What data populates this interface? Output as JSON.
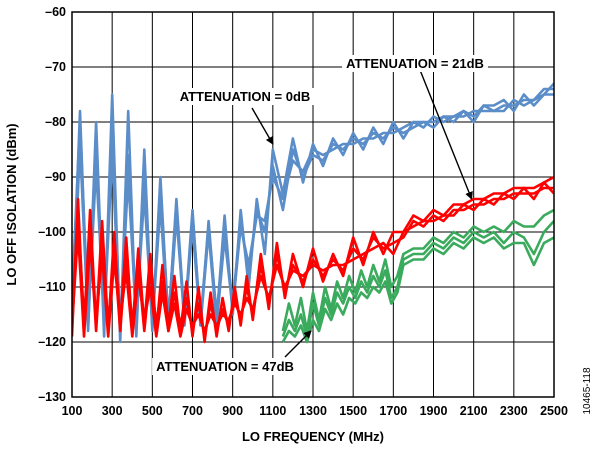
{
  "chart_data": {
    "type": "line",
    "xlabel": "LO FREQUENCY (MHz)",
    "ylabel": "LO OFF ISOLATION (dBm)",
    "xlim": [
      100,
      2500
    ],
    "ylim": [
      -130,
      -60
    ],
    "x_ticks": [
      100,
      300,
      500,
      700,
      900,
      1100,
      1300,
      1500,
      1700,
      1900,
      2100,
      2300,
      2500
    ],
    "x_tick_labels": [
      "100",
      "300",
      "500",
      "700",
      "900",
      "1100",
      "1300",
      "1500",
      "1700",
      "1900",
      "2100",
      "2300",
      "2500"
    ],
    "y_ticks": [
      -60,
      -70,
      -80,
      -90,
      -100,
      -110,
      -120,
      -130
    ],
    "y_tick_labels": [
      "–60",
      "–70",
      "–80",
      "–90",
      "–100",
      "–110",
      "–120",
      "–130"
    ],
    "grid": true,
    "colors": {
      "att_0db": "#5B8DC8",
      "att_21db": "#FF0000",
      "att_47db": "#3AAA5C"
    },
    "annotations": [
      {
        "text": "ATTENUATION = 0dB",
        "target_x": 1100,
        "target_y": -84
      },
      {
        "text": "ATTENUATION = 21dB",
        "target_x": 2090,
        "target_y": -94
      },
      {
        "text": "ATTENUATION = 47dB",
        "target_x": 1290,
        "target_y": -118
      }
    ],
    "series": [
      {
        "color": "#5B8DC8",
        "x": [
          100,
          140,
          180,
          220,
          260,
          300,
          340,
          380,
          420,
          460,
          500,
          540,
          580,
          620,
          660,
          700,
          740,
          780,
          820,
          860,
          900,
          940,
          980,
          1020,
          1060,
          1100,
          1150,
          1200,
          1250,
          1300,
          1350,
          1400,
          1450,
          1500,
          1550,
          1600,
          1650,
          1700,
          1750,
          1800,
          1850,
          1900,
          1950,
          2000,
          2050,
          2100,
          2150,
          2200,
          2250,
          2300,
          2350,
          2400,
          2450,
          2500
        ],
        "y": [
          -116,
          -78,
          -118,
          -80,
          -119,
          -75,
          -120,
          -78,
          -119,
          -85,
          -118,
          -90,
          -117,
          -94,
          -116,
          -96,
          -117,
          -98,
          -116,
          -97,
          -115,
          -96,
          -110,
          -94,
          -104,
          -85,
          -93,
          -83,
          -91,
          -84,
          -88,
          -83,
          -86,
          -82,
          -85,
          -81,
          -84,
          -80,
          -83,
          -80,
          -81,
          -79,
          -80,
          -79,
          -79,
          -78,
          -78,
          -78,
          -78,
          -76,
          -77,
          -76,
          -75,
          -73
        ]
      },
      {
        "color": "#5B8DC8",
        "x": [
          100,
          140,
          180,
          220,
          260,
          300,
          340,
          380,
          420,
          460,
          500,
          540,
          580,
          620,
          660,
          700,
          740,
          780,
          820,
          860,
          900,
          940,
          980,
          1020,
          1060,
          1100,
          1150,
          1200,
          1250,
          1300,
          1350,
          1400,
          1450,
          1500,
          1550,
          1600,
          1650,
          1700,
          1750,
          1800,
          1850,
          1900,
          1950,
          2000,
          2050,
          2100,
          2150,
          2200,
          2250,
          2300,
          2350,
          2400,
          2450,
          2500
        ],
        "y": [
          -112,
          -80,
          -115,
          -84,
          -117,
          -80,
          -118,
          -86,
          -118,
          -88,
          -117,
          -92,
          -116,
          -95,
          -117,
          -97,
          -116,
          -99,
          -115,
          -100,
          -113,
          -98,
          -108,
          -96,
          -100,
          -88,
          -96,
          -85,
          -90,
          -86,
          -87,
          -84,
          -85,
          -83,
          -84,
          -82,
          -83,
          -81,
          -82,
          -81,
          -80,
          -80,
          -79,
          -79,
          -78,
          -79,
          -77,
          -78,
          -77,
          -77,
          -76,
          -76,
          -74,
          -74
        ]
      },
      {
        "color": "#5B8DC8",
        "x": [
          100,
          140,
          180,
          220,
          260,
          300,
          340,
          380,
          420,
          460,
          500,
          540,
          580,
          620,
          660,
          700,
          740,
          780,
          820,
          860,
          900,
          940,
          980,
          1020,
          1060,
          1100,
          1150,
          1200,
          1250,
          1300,
          1350,
          1400,
          1450,
          1500,
          1550,
          1600,
          1650,
          1700,
          1750,
          1800,
          1850,
          1900,
          1950,
          2000,
          2050,
          2100,
          2150,
          2200,
          2250,
          2300,
          2350,
          2400,
          2450,
          2500
        ],
        "y": [
          -118,
          -84,
          -117,
          -88,
          -116,
          -86,
          -117,
          -90,
          -116,
          -93,
          -117,
          -95,
          -118,
          -97,
          -116,
          -99,
          -117,
          -100,
          -117,
          -101,
          -114,
          -99,
          -106,
          -97,
          -98,
          -90,
          -94,
          -87,
          -89,
          -85,
          -86,
          -85,
          -84,
          -84,
          -83,
          -83,
          -82,
          -82,
          -81,
          -80,
          -80,
          -81,
          -79,
          -80,
          -78,
          -80,
          -77,
          -77,
          -76,
          -78,
          -75,
          -77,
          -75,
          -75
        ]
      },
      {
        "color": "#FF0000",
        "x": [
          100,
          130,
          160,
          190,
          220,
          250,
          280,
          310,
          340,
          370,
          400,
          430,
          460,
          490,
          520,
          550,
          580,
          610,
          640,
          670,
          700,
          730,
          760,
          790,
          820,
          850,
          880,
          910,
          940,
          970,
          1000,
          1040,
          1080,
          1120,
          1160,
          1200,
          1250,
          1300,
          1350,
          1400,
          1450,
          1500,
          1550,
          1600,
          1650,
          1700,
          1750,
          1800,
          1850,
          1900,
          1950,
          2000,
          2050,
          2100,
          2150,
          2200,
          2250,
          2300,
          2350,
          2400,
          2450,
          2500
        ],
        "y": [
          -119,
          -94,
          -118,
          -96,
          -117,
          -98,
          -118,
          -100,
          -117,
          -101,
          -118,
          -103,
          -117,
          -104,
          -118,
          -106,
          -117,
          -108,
          -118,
          -109,
          -119,
          -110,
          -120,
          -111,
          -119,
          -112,
          -118,
          -110,
          -117,
          -108,
          -116,
          -104,
          -114,
          -102,
          -112,
          -104,
          -110,
          -103,
          -109,
          -104,
          -108,
          -101,
          -106,
          -100,
          -104,
          -100,
          -100,
          -97,
          -98,
          -96,
          -97,
          -95,
          -95,
          -94,
          -94,
          -93,
          -93,
          -92,
          -92,
          -92,
          -91,
          -90
        ]
      },
      {
        "color": "#FF0000",
        "x": [
          100,
          130,
          160,
          190,
          220,
          250,
          280,
          310,
          340,
          370,
          400,
          430,
          460,
          490,
          520,
          550,
          580,
          610,
          640,
          670,
          700,
          730,
          760,
          790,
          820,
          850,
          880,
          910,
          940,
          970,
          1000,
          1040,
          1080,
          1120,
          1160,
          1200,
          1250,
          1300,
          1350,
          1400,
          1450,
          1500,
          1550,
          1600,
          1650,
          1700,
          1750,
          1800,
          1850,
          1900,
          1950,
          2000,
          2050,
          2100,
          2150,
          2200,
          2250,
          2300,
          2350,
          2400,
          2450,
          2500
        ],
        "y": [
          -115,
          -97,
          -116,
          -100,
          -118,
          -101,
          -117,
          -103,
          -118,
          -104,
          -117,
          -106,
          -118,
          -107,
          -117,
          -109,
          -118,
          -111,
          -117,
          -112,
          -118,
          -113,
          -119,
          -113,
          -118,
          -114,
          -117,
          -112,
          -116,
          -110,
          -115,
          -106,
          -113,
          -104,
          -111,
          -106,
          -109,
          -105,
          -108,
          -105,
          -107,
          -103,
          -105,
          -101,
          -103,
          -102,
          -101,
          -98,
          -99,
          -97,
          -98,
          -96,
          -96,
          -95,
          -95,
          -94,
          -94,
          -93,
          -93,
          -93,
          -92,
          -92
        ]
      },
      {
        "color": "#FF0000",
        "x": [
          100,
          130,
          160,
          190,
          220,
          250,
          280,
          310,
          340,
          370,
          400,
          430,
          460,
          490,
          520,
          550,
          580,
          610,
          640,
          670,
          700,
          730,
          760,
          790,
          820,
          850,
          880,
          910,
          940,
          970,
          1000,
          1040,
          1080,
          1120,
          1160,
          1200,
          1250,
          1300,
          1350,
          1400,
          1450,
          1500,
          1550,
          1600,
          1650,
          1700,
          1750,
          1800,
          1850,
          1900,
          1950,
          2000,
          2050,
          2100,
          2150,
          2200,
          2250,
          2300,
          2350,
          2400,
          2450,
          2500
        ],
        "y": [
          -117,
          -100,
          -119,
          -102,
          -116,
          -104,
          -119,
          -105,
          -116,
          -107,
          -119,
          -108,
          -116,
          -110,
          -119,
          -111,
          -118,
          -113,
          -119,
          -114,
          -117,
          -115,
          -118,
          -115,
          -117,
          -115,
          -116,
          -113,
          -115,
          -112,
          -114,
          -108,
          -112,
          -106,
          -110,
          -107,
          -108,
          -106,
          -107,
          -106,
          -106,
          -105,
          -104,
          -103,
          -102,
          -104,
          -100,
          -99,
          -98,
          -98,
          -97,
          -97,
          -95,
          -96,
          -94,
          -95,
          -93,
          -94,
          -92,
          -94,
          -91,
          -93
        ]
      },
      {
        "color": "#3AAA5C",
        "x": [
          1150,
          1180,
          1210,
          1240,
          1270,
          1300,
          1330,
          1360,
          1390,
          1420,
          1450,
          1480,
          1510,
          1540,
          1570,
          1600,
          1630,
          1660,
          1690,
          1720,
          1750,
          1800,
          1850,
          1900,
          1950,
          2000,
          2050,
          2100,
          2150,
          2200,
          2250,
          2300,
          2350,
          2400,
          2450,
          2500
        ],
        "y": [
          -118,
          -113,
          -117,
          -112,
          -118,
          -111,
          -116,
          -110,
          -114,
          -109,
          -112,
          -108,
          -111,
          -107,
          -110,
          -106,
          -109,
          -105,
          -110,
          -108,
          -104,
          -103,
          -103,
          -101,
          -102,
          -100,
          -101,
          -99,
          -100,
          -99,
          -100,
          -98,
          -99,
          -99,
          -97,
          -96
        ]
      },
      {
        "color": "#3AAA5C",
        "x": [
          1150,
          1180,
          1210,
          1240,
          1270,
          1300,
          1330,
          1360,
          1390,
          1420,
          1450,
          1480,
          1510,
          1540,
          1570,
          1600,
          1630,
          1660,
          1690,
          1720,
          1750,
          1800,
          1850,
          1900,
          1950,
          2000,
          2050,
          2100,
          2150,
          2200,
          2250,
          2300,
          2350,
          2400,
          2450,
          2500
        ],
        "y": [
          -119,
          -116,
          -118,
          -115,
          -119,
          -113,
          -117,
          -112,
          -115,
          -111,
          -113,
          -110,
          -112,
          -109,
          -111,
          -108,
          -110,
          -107,
          -112,
          -110,
          -105,
          -104,
          -104,
          -102,
          -103,
          -101,
          -102,
          -100,
          -101,
          -100,
          -102,
          -100,
          -101,
          -104,
          -100,
          -98
        ]
      },
      {
        "color": "#3AAA5C",
        "x": [
          1150,
          1180,
          1210,
          1240,
          1270,
          1300,
          1330,
          1360,
          1390,
          1420,
          1450,
          1480,
          1510,
          1540,
          1570,
          1600,
          1630,
          1660,
          1690,
          1720,
          1750,
          1800,
          1850,
          1900,
          1950,
          2000,
          2050,
          2100,
          2150,
          2200,
          2250,
          2300,
          2350,
          2400,
          2450,
          2500
        ],
        "y": [
          -120,
          -118,
          -119,
          -117,
          -120,
          -116,
          -118,
          -114,
          -116,
          -113,
          -115,
          -112,
          -113,
          -111,
          -112,
          -110,
          -111,
          -109,
          -113,
          -111,
          -106,
          -105,
          -105,
          -103,
          -104,
          -102,
          -103,
          -101,
          -102,
          -101,
          -103,
          -102,
          -102,
          -106,
          -102,
          -101
        ]
      }
    ]
  },
  "figure_id": "10465-118"
}
